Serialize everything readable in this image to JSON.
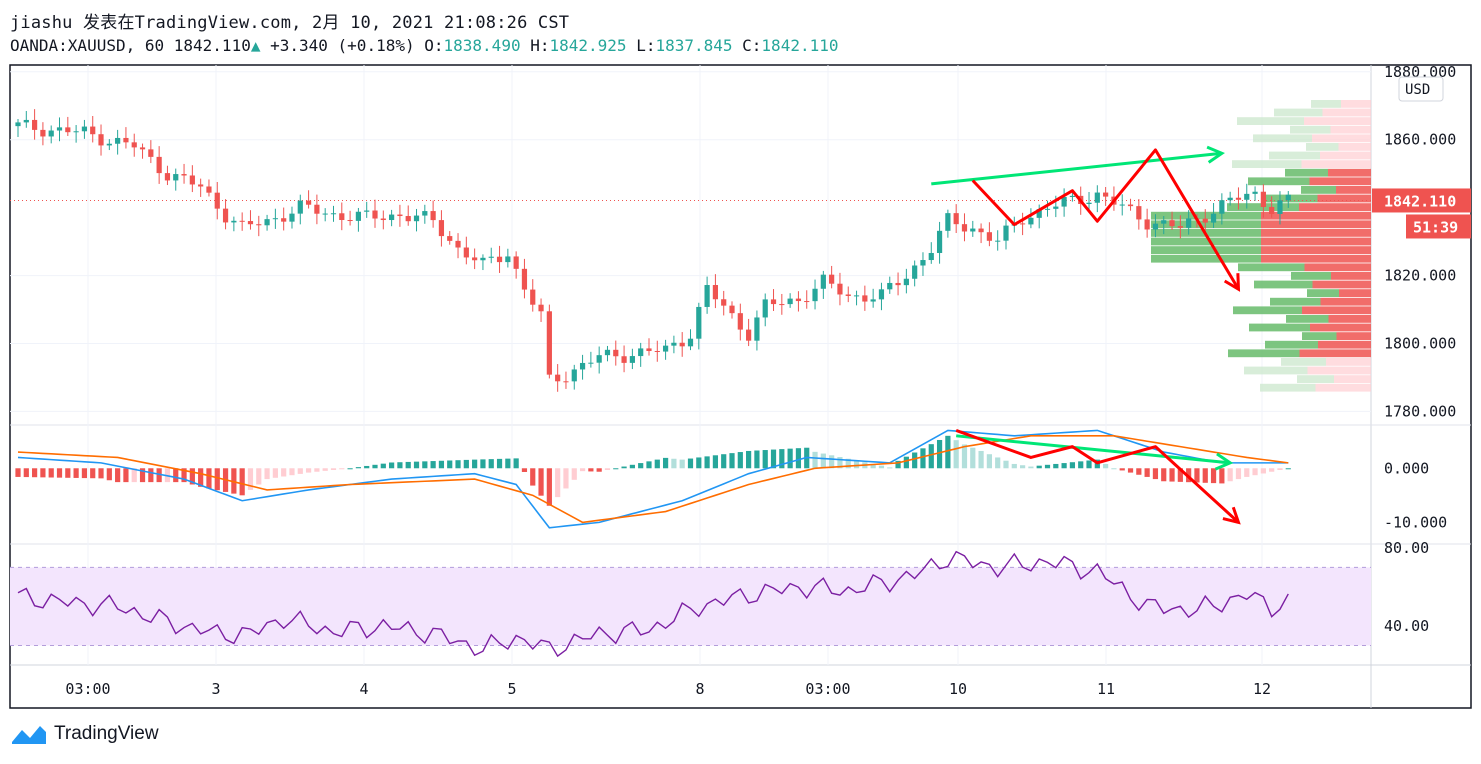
{
  "header": {
    "line1": "jiashu 发表在TradingView.com, 2月 10, 2021 21:08:26 CST",
    "symbol": "OANDA:XAUUSD, 60",
    "last": "1842.110",
    "change": "+3.340 (+0.18%)",
    "o_label": "O:",
    "o_value": "1838.490",
    "h_label": "H:",
    "h_value": "1842.925",
    "l_label": "L:",
    "l_value": "1837.845",
    "c_label": "C:",
    "c_value": "1842.110"
  },
  "brand": "TradingView",
  "chart_data": {
    "type": "candlestick",
    "currency": "USD",
    "price_axis": {
      "ticks": [
        "1880.000",
        "1860.000",
        "1842.110",
        "1820.000",
        "1800.000",
        "1780.000"
      ],
      "ylim": [
        1776,
        1882
      ]
    },
    "current_price_label": "1842.110",
    "countdown_label": "51:39",
    "x_labels": [
      "03:00",
      "3",
      "4",
      "5",
      "8",
      "03:00",
      "10",
      "11",
      "12"
    ],
    "price_path": [
      [
        0,
        1864
      ],
      [
        8,
        1862
      ],
      [
        14,
        1858
      ],
      [
        18,
        1850
      ],
      [
        22,
        1846
      ],
      [
        25,
        1838
      ],
      [
        27,
        1834
      ],
      [
        30,
        1836
      ],
      [
        34,
        1840
      ],
      [
        38,
        1838
      ],
      [
        42,
        1837
      ],
      [
        46,
        1838
      ],
      [
        50,
        1836
      ],
      [
        53,
        1828
      ],
      [
        56,
        1823
      ],
      [
        59,
        1827
      ],
      [
        61,
        1816
      ],
      [
        63,
        1808
      ],
      [
        64,
        1789
      ],
      [
        66,
        1791
      ],
      [
        70,
        1796
      ],
      [
        74,
        1797
      ],
      [
        78,
        1798
      ],
      [
        81,
        1803
      ],
      [
        83,
        1816
      ],
      [
        86,
        1808
      ],
      [
        88,
        1803
      ],
      [
        90,
        1811
      ],
      [
        94,
        1813
      ],
      [
        97,
        1818
      ],
      [
        100,
        1814
      ],
      [
        104,
        1814
      ],
      [
        107,
        1820
      ],
      [
        110,
        1828
      ],
      [
        112,
        1836
      ],
      [
        115,
        1834
      ],
      [
        118,
        1830
      ],
      [
        121,
        1837
      ],
      [
        124,
        1840
      ],
      [
        127,
        1842
      ],
      [
        130,
        1844
      ],
      [
        133,
        1840
      ],
      [
        136,
        1836
      ],
      [
        140,
        1834
      ],
      [
        143,
        1838
      ],
      [
        146,
        1842
      ],
      [
        149,
        1844
      ],
      [
        151,
        1840
      ],
      [
        153,
        1842
      ]
    ],
    "macd": {
      "axis_ticks": [
        "0.000",
        "-10.000"
      ],
      "ylim": [
        -14,
        8
      ],
      "macd_path": [
        [
          0,
          2
        ],
        [
          10,
          1
        ],
        [
          20,
          -2
        ],
        [
          27,
          -6
        ],
        [
          35,
          -4
        ],
        [
          45,
          -2
        ],
        [
          55,
          -1
        ],
        [
          60,
          -3
        ],
        [
          64,
          -11
        ],
        [
          70,
          -10
        ],
        [
          80,
          -6
        ],
        [
          88,
          -1
        ],
        [
          95,
          2
        ],
        [
          105,
          1
        ],
        [
          112,
          7
        ],
        [
          120,
          6
        ],
        [
          130,
          7
        ],
        [
          138,
          3
        ],
        [
          145,
          1
        ],
        [
          153,
          1
        ]
      ],
      "signal_path": [
        [
          0,
          3
        ],
        [
          12,
          2
        ],
        [
          22,
          -1
        ],
        [
          30,
          -4
        ],
        [
          40,
          -3
        ],
        [
          55,
          -2
        ],
        [
          62,
          -5
        ],
        [
          68,
          -10
        ],
        [
          78,
          -8
        ],
        [
          88,
          -3
        ],
        [
          96,
          0
        ],
        [
          106,
          1
        ],
        [
          114,
          4
        ],
        [
          122,
          6
        ],
        [
          132,
          6
        ],
        [
          140,
          4
        ],
        [
          148,
          2
        ],
        [
          153,
          1
        ]
      ]
    },
    "rsi": {
      "axis_ticks": [
        "80.00",
        "40.00"
      ],
      "ylim": [
        20,
        82
      ],
      "band": [
        30,
        70
      ],
      "path": [
        [
          0,
          55
        ],
        [
          6,
          52
        ],
        [
          12,
          50
        ],
        [
          18,
          42
        ],
        [
          24,
          36
        ],
        [
          28,
          36
        ],
        [
          32,
          44
        ],
        [
          38,
          37
        ],
        [
          44,
          40
        ],
        [
          50,
          36
        ],
        [
          56,
          28
        ],
        [
          60,
          34
        ],
        [
          64,
          28
        ],
        [
          70,
          36
        ],
        [
          76,
          38
        ],
        [
          82,
          50
        ],
        [
          88,
          56
        ],
        [
          94,
          60
        ],
        [
          100,
          58
        ],
        [
          108,
          66
        ],
        [
          112,
          75
        ],
        [
          118,
          70
        ],
        [
          124,
          73
        ],
        [
          130,
          68
        ],
        [
          136,
          50
        ],
        [
          142,
          48
        ],
        [
          148,
          56
        ],
        [
          151,
          50
        ],
        [
          153,
          52
        ]
      ]
    },
    "annotations": {
      "green_trend_price": {
        "start": [
          110,
          1847
        ],
        "end": [
          145,
          1856
        ],
        "color": "#00e676"
      },
      "green_trend_macd": {
        "start": [
          113,
          6
        ],
        "end": [
          146,
          1
        ],
        "color": "#00e676"
      },
      "red_zigzag_price": {
        "points": [
          [
            115,
            1848
          ],
          [
            120,
            1835
          ],
          [
            127,
            1845
          ],
          [
            130,
            1836
          ],
          [
            137,
            1857
          ],
          [
            147,
            1816
          ]
        ],
        "color": "#ff0000"
      },
      "red_zigzag_macd": {
        "points": [
          [
            113,
            7
          ],
          [
            122,
            2
          ],
          [
            127,
            4
          ],
          [
            130,
            1
          ],
          [
            137,
            4
          ],
          [
            147,
            -10
          ]
        ],
        "color": "#ff0000"
      }
    },
    "colors": {
      "up": "#26a69a",
      "down": "#ef5350",
      "macd_line": "#2196f3",
      "signal_line": "#ff6d00",
      "rsi_line": "#7b1fa2",
      "rsi_band": "#f3e5fd"
    }
  }
}
